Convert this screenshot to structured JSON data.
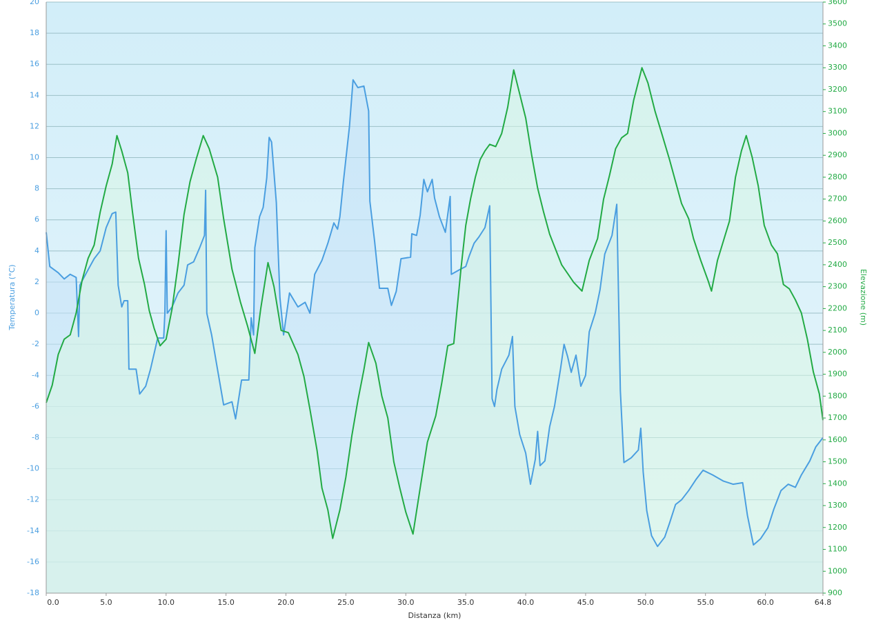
{
  "chart_data": {
    "type": "line",
    "xlabel": "Distanza  (km)",
    "ylabel": "Temperatura (°C)",
    "y2label": "Elevazione (m)",
    "xlim": [
      0,
      64.8
    ],
    "xticks": [
      {
        "value": 0,
        "label": "0.0"
      },
      {
        "value": 5,
        "label": "5.0"
      },
      {
        "value": 10,
        "label": "10.0"
      },
      {
        "value": 15,
        "label": "15.0"
      },
      {
        "value": 20,
        "label": "20.0"
      },
      {
        "value": 25,
        "label": "25.0"
      },
      {
        "value": 30,
        "label": "30.0"
      },
      {
        "value": 35,
        "label": "35.0"
      },
      {
        "value": 40,
        "label": "40.0"
      },
      {
        "value": 45,
        "label": "45.0"
      },
      {
        "value": 50,
        "label": "50.0"
      },
      {
        "value": 55,
        "label": "55.0"
      },
      {
        "value": 60,
        "label": "60.0"
      },
      64.8
    ],
    "ylim": [
      -18,
      20
    ],
    "yticks": [
      -18,
      -16,
      -14,
      -12,
      -10,
      -8,
      -6,
      -4,
      -2,
      0,
      2,
      4,
      6,
      8,
      10,
      12,
      14,
      16,
      18,
      20
    ],
    "y2lim": [
      900,
      3600
    ],
    "y2ticks": [
      900,
      1000,
      1100,
      1200,
      1300,
      1400,
      1500,
      1600,
      1700,
      1800,
      1900,
      2000,
      2100,
      2200,
      2300,
      2400,
      2500,
      2600,
      2700,
      2800,
      2900,
      3000,
      3100,
      3200,
      3300,
      3400,
      3500,
      3600
    ],
    "grid": true,
    "series": [
      {
        "color": "#4a9ee0",
        "fill": "#c4e2f8",
        "x": [
          0,
          0.3,
          1.0,
          1.5,
          2.0,
          2.5,
          2.7,
          2.8,
          3.5,
          4.0,
          4.5,
          5.0,
          5.5,
          5.8,
          6.0,
          6.3,
          6.5,
          6.8,
          6.9,
          7.5,
          7.8,
          8.3,
          8.7,
          9.3,
          9.8,
          9.9,
          10.0,
          10.1,
          10.5,
          11.0,
          11.5,
          11.8,
          12.3,
          12.8,
          13.2,
          13.3,
          13.4,
          13.8,
          14.2,
          14.8,
          15.5,
          15.8,
          16.3,
          16.9,
          17.1,
          17.3,
          17.4,
          17.8,
          18.1,
          18.4,
          18.6,
          18.8,
          19.2,
          19.5,
          19.8,
          20.3,
          21.0,
          21.6,
          22.0,
          22.4,
          23.0,
          23.5,
          24.0,
          24.3,
          24.5,
          24.8,
          25.3,
          25.6,
          26.0,
          26.5,
          26.9,
          27.0,
          27.4,
          27.8,
          28.5,
          28.8,
          29.2,
          29.6,
          30.4,
          30.5,
          30.9,
          31.2,
          31.5,
          31.8,
          32.2,
          32.4,
          32.8,
          33.3,
          33.7,
          33.8,
          34.5,
          35.0,
          35.3,
          35.7,
          36.1,
          36.6,
          37.0,
          37.1,
          37.2,
          37.4,
          37.6,
          38.0,
          38.6,
          38.9,
          39.1,
          39.5,
          40.0,
          40.4,
          40.8,
          41.0,
          41.2,
          41.6,
          42.0,
          42.4,
          42.9,
          43.2,
          43.5,
          43.8,
          44.2,
          44.6,
          45.0,
          45.3,
          45.8,
          46.2,
          46.6,
          47.2,
          47.6,
          47.9,
          48.2,
          48.8,
          49.4,
          49.6,
          49.8,
          50.1,
          50.5,
          51.0,
          51.6,
          52.0,
          52.5,
          53.0,
          53.6,
          54.2,
          54.8,
          55.6,
          56.5,
          57.3,
          58.1,
          58.5,
          59.0,
          59.6,
          60.2,
          60.7,
          61.3,
          61.9,
          62.5,
          63.0,
          63.7,
          64.2,
          64.8
        ],
        "values": [
          5.2,
          3.0,
          2.6,
          2.2,
          2.5,
          2.3,
          -1.5,
          1.8,
          2.8,
          3.5,
          4.0,
          5.5,
          6.4,
          6.5,
          1.8,
          0.4,
          0.8,
          0.8,
          -3.6,
          -3.6,
          -5.2,
          -4.7,
          -3.6,
          -1.6,
          -1.6,
          0,
          5.3,
          0,
          0.4,
          1.3,
          1.8,
          3.1,
          3.3,
          4.2,
          5.0,
          7.9,
          0,
          -1.4,
          -3.2,
          -5.9,
          -5.7,
          -6.8,
          -4.3,
          -4.3,
          -0.3,
          -1.4,
          4.2,
          6.2,
          6.8,
          8.7,
          11.3,
          11.0,
          7.1,
          1.0,
          -1.4,
          1.3,
          0.4,
          0.7,
          0,
          2.5,
          3.4,
          4.5,
          5.8,
          5.4,
          6.2,
          8.5,
          12.0,
          15.0,
          14.5,
          14.6,
          13.0,
          7.2,
          4.6,
          1.6,
          1.6,
          0.5,
          1.4,
          3.5,
          3.6,
          5.1,
          5.0,
          6.3,
          8.6,
          7.8,
          8.6,
          7.4,
          6.2,
          5.2,
          7.5,
          2.5,
          2.8,
          3.0,
          3.7,
          4.5,
          4.9,
          5.5,
          6.9,
          0.5,
          -5.5,
          -6.0,
          -4.9,
          -3.6,
          -2.7,
          -1.5,
          -6.0,
          -7.8,
          -9.0,
          -11.0,
          -9.4,
          -7.6,
          -9.8,
          -9.5,
          -7.3,
          -6.0,
          -3.6,
          -2.0,
          -2.8,
          -3.8,
          -2.7,
          -4.7,
          -4.0,
          -1.2,
          0,
          1.5,
          3.8,
          5.0,
          7.0,
          -5.0,
          -9.6,
          -9.3,
          -8.8,
          -7.4,
          -10.2,
          -12.7,
          -14.3,
          -15.0,
          -14.4,
          -13.5,
          -12.3,
          -12.0,
          -11.4,
          -10.7,
          -10.1,
          -10.4,
          -10.8,
          -11.0,
          -10.9,
          -13.0,
          -14.9,
          -14.5,
          -13.8,
          -12.6,
          -11.4,
          -11.0,
          -11.2,
          -10.4,
          -9.5,
          -8.6,
          -8.0
        ]
      },
      {
        "color": "#22aa44",
        "fill": "#d8f5e4",
        "axis": "y2",
        "x": [
          0,
          0.5,
          1.0,
          1.5,
          2.0,
          2.5,
          3.0,
          3.5,
          4.0,
          4.5,
          5.0,
          5.5,
          5.9,
          6.3,
          6.8,
          7.2,
          7.7,
          8.2,
          8.6,
          9.0,
          9.5,
          10.0,
          10.5,
          11.0,
          11.5,
          12.0,
          12.5,
          13.1,
          13.6,
          14.3,
          14.8,
          15.5,
          16.2,
          16.8,
          17.4,
          17.9,
          18.5,
          19.0,
          19.6,
          20.2,
          21.0,
          21.5,
          22.0,
          22.6,
          23.0,
          23.5,
          23.9,
          24.5,
          25.0,
          25.5,
          26.0,
          26.5,
          26.9,
          27.5,
          28.0,
          28.5,
          29.0,
          29.5,
          30.0,
          30.6,
          31.2,
          31.8,
          32.5,
          33.0,
          33.5,
          34.0,
          34.6,
          35.0,
          35.4,
          35.8,
          36.2,
          36.6,
          37.0,
          37.5,
          38.0,
          38.5,
          39.0,
          39.5,
          40.0,
          40.5,
          41.0,
          41.5,
          42.0,
          42.5,
          43.0,
          43.5,
          44.0,
          44.7,
          45.3,
          46.0,
          46.5,
          47.0,
          47.5,
          48.0,
          48.5,
          49.0,
          49.7,
          50.2,
          50.8,
          51.4,
          52.0,
          52.5,
          53.0,
          53.6,
          54.0,
          54.6,
          55.2,
          55.5,
          56.0,
          56.5,
          57.0,
          57.5,
          58.0,
          58.4,
          58.9,
          59.4,
          59.9,
          60.5,
          61.0,
          61.5,
          62.0,
          62.5,
          63.0,
          63.5,
          64.0,
          64.5,
          64.8
        ],
        "values": [
          1770,
          1850,
          1990,
          2060,
          2080,
          2180,
          2330,
          2430,
          2490,
          2640,
          2760,
          2860,
          2990,
          2920,
          2820,
          2640,
          2430,
          2310,
          2190,
          2110,
          2030,
          2060,
          2200,
          2400,
          2630,
          2780,
          2880,
          2990,
          2930,
          2800,
          2610,
          2380,
          2230,
          2120,
          1995,
          2200,
          2410,
          2300,
          2100,
          2090,
          1990,
          1890,
          1740,
          1550,
          1380,
          1280,
          1150,
          1280,
          1430,
          1620,
          1780,
          1920,
          2045,
          1950,
          1800,
          1700,
          1500,
          1380,
          1270,
          1170,
          1380,
          1590,
          1710,
          1860,
          2030,
          2040,
          2380,
          2580,
          2700,
          2800,
          2880,
          2920,
          2950,
          2940,
          3000,
          3120,
          3290,
          3180,
          3070,
          2900,
          2750,
          2640,
          2540,
          2470,
          2400,
          2360,
          2320,
          2280,
          2420,
          2520,
          2700,
          2810,
          2930,
          2980,
          3000,
          3150,
          3300,
          3230,
          3100,
          2990,
          2880,
          2780,
          2680,
          2610,
          2520,
          2420,
          2330,
          2280,
          2420,
          2510,
          2600,
          2800,
          2920,
          2990,
          2890,
          2760,
          2580,
          2490,
          2450,
          2310,
          2290,
          2240,
          2180,
          2060,
          1910,
          1810,
          1690
        ]
      }
    ]
  }
}
